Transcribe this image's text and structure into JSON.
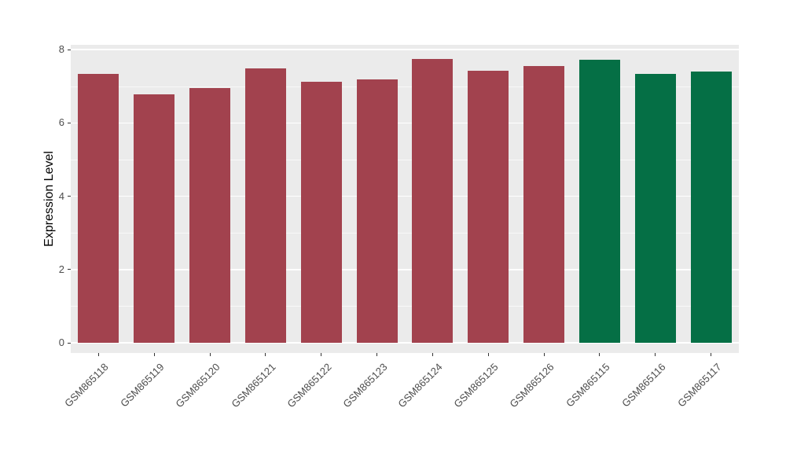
{
  "chart_data": {
    "type": "bar",
    "title": "",
    "xlabel": "",
    "ylabel": "Expression Level",
    "categories": [
      "GSM865118",
      "GSM865119",
      "GSM865120",
      "GSM865121",
      "GSM865122",
      "GSM865123",
      "GSM865124",
      "GSM865125",
      "GSM865126",
      "GSM865115",
      "GSM865116",
      "GSM865117"
    ],
    "values": [
      7.34,
      6.78,
      6.95,
      7.49,
      7.12,
      7.19,
      7.75,
      7.42,
      7.55,
      7.72,
      7.34,
      7.4
    ],
    "bar_colors": [
      "#A2424E",
      "#A2424E",
      "#A2424E",
      "#A2424E",
      "#A2424E",
      "#A2424E",
      "#A2424E",
      "#A2424E",
      "#A2424E",
      "#056F45",
      "#056F45",
      "#056F45"
    ],
    "ylim": [
      0,
      8
    ],
    "yticks": [
      0,
      2,
      4,
      6,
      8
    ],
    "yticks_minor": [
      1,
      3,
      5,
      7
    ],
    "grid": "on",
    "legend": "none",
    "panel_bg": "#EBEBEB",
    "grid_color": "#FFFFFF",
    "axis_text_color": "#4D4D4D"
  }
}
